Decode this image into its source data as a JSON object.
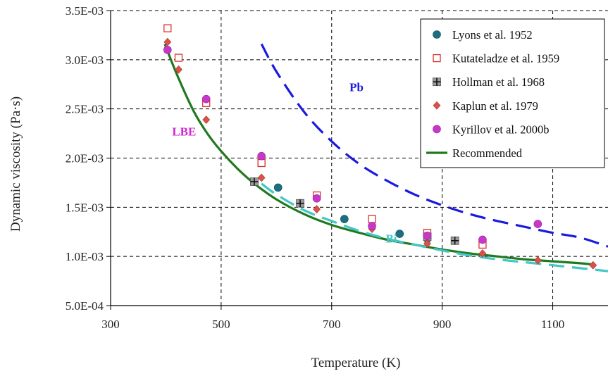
{
  "chart_data": {
    "type": "scatter",
    "xlabel": "Temperature (K)",
    "ylabel": "Dynamic viscosity (Pa·s)",
    "xlim": [
      300,
      1200
    ],
    "ylim": [
      0.0005,
      0.0035
    ],
    "x_ticks": [
      300,
      500,
      700,
      900,
      1100
    ],
    "x_tick_labels": [
      "300",
      "500",
      "700",
      "900",
      "1100"
    ],
    "y_ticks": [
      0.0005,
      0.001,
      0.0015,
      0.002,
      0.0025,
      0.003,
      0.0035
    ],
    "y_tick_labels": [
      "5.0E-04",
      "1.0E-03",
      "1.5E-03",
      "2.0E-03",
      "2.5E-03",
      "3.0E-03",
      "3.5E-03"
    ],
    "grid": true,
    "legend_position": "top-right",
    "series": [
      {
        "name": "Lyons et al. 1952",
        "kind": "marker",
        "marker": "circle",
        "color": "#1c6f80",
        "x": [
          603,
          723,
          823,
          873
        ],
        "y": [
          0.0017,
          0.00138,
          0.00123,
          0.00118
        ]
      },
      {
        "name": "Kutateladze et al. 1959",
        "kind": "marker",
        "marker": "square-open",
        "color": "#d9302c",
        "x": [
          403,
          423,
          473,
          573,
          673,
          773,
          873,
          973
        ],
        "y": [
          0.00332,
          0.00302,
          0.00256,
          0.00195,
          0.00162,
          0.00138,
          0.00124,
          0.00112
        ]
      },
      {
        "name": "Hollman et al. 1968",
        "kind": "marker",
        "marker": "plus-square",
        "color": "#444444",
        "x": [
          560,
          643,
          873,
          923
        ],
        "y": [
          0.00176,
          0.00154,
          0.0012,
          0.00116
        ]
      },
      {
        "name": "Kaplun et al. 1979",
        "kind": "marker",
        "marker": "diamond",
        "color": "#d9524a",
        "x": [
          403,
          423,
          473,
          573,
          673,
          773,
          873,
          973,
          1073,
          1173
        ],
        "y": [
          0.00318,
          0.0029,
          0.00239,
          0.0018,
          0.00148,
          0.00128,
          0.00113,
          0.00103,
          0.00096,
          0.00091
        ]
      },
      {
        "name": "Kyrillov et al. 2000b",
        "kind": "marker",
        "marker": "circle",
        "color": "#c838c8",
        "x": [
          403,
          473,
          573,
          673,
          773,
          873,
          973,
          1073
        ],
        "y": [
          0.0031,
          0.0026,
          0.00202,
          0.00159,
          0.00131,
          0.00121,
          0.00117,
          0.00133
        ]
      },
      {
        "name": "Recommended",
        "kind": "line",
        "color": "#1f7a1f",
        "dash": "",
        "x": [
          398,
          420,
          450,
          475,
          500,
          530,
          560,
          600,
          650,
          700,
          750,
          800,
          850,
          900,
          950,
          1000,
          1050,
          1100,
          1150,
          1170
        ],
        "y": [
          0.00316,
          0.00285,
          0.00248,
          0.00225,
          0.00207,
          0.00189,
          0.00174,
          0.00158,
          0.00143,
          0.00132,
          0.00124,
          0.00117,
          0.00112,
          0.00107,
          0.00103,
          0.001,
          0.00097,
          0.00095,
          0.00093,
          0.00092
        ]
      },
      {
        "label": "Pb",
        "kind": "line",
        "color": "#1a1adf",
        "dash": "22 11",
        "x": [
          573,
          600,
          650,
          700,
          750,
          800,
          850,
          900,
          950,
          1000,
          1050,
          1100,
          1150,
          1200
        ],
        "y": [
          0.00316,
          0.00288,
          0.00247,
          0.00217,
          0.00194,
          0.00177,
          0.00163,
          0.00152,
          0.00143,
          0.00136,
          0.0013,
          0.00124,
          0.00119,
          0.0011
        ]
      },
      {
        "label": "Bi",
        "kind": "line",
        "color": "#45c6c6",
        "dash": "22 11",
        "x": [
          573,
          600,
          650,
          700,
          750,
          800,
          850,
          900,
          950,
          1000,
          1050,
          1100,
          1150,
          1200
        ],
        "y": [
          0.00174,
          0.00163,
          0.00147,
          0.00136,
          0.00126,
          0.00118,
          0.00112,
          0.00106,
          0.00101,
          0.00097,
          0.00094,
          0.00091,
          0.00088,
          0.00085
        ]
      }
    ],
    "annotations": [
      {
        "text": "Pb",
        "x": 745,
        "y": 0.00268,
        "color": "#1a1adf"
      },
      {
        "text": "LBE",
        "x": 433,
        "y": 0.00223,
        "color": "#d326d3"
      },
      {
        "text": "Bi",
        "x": 808,
        "y": 0.00114,
        "color": "#45c6c6"
      }
    ]
  }
}
